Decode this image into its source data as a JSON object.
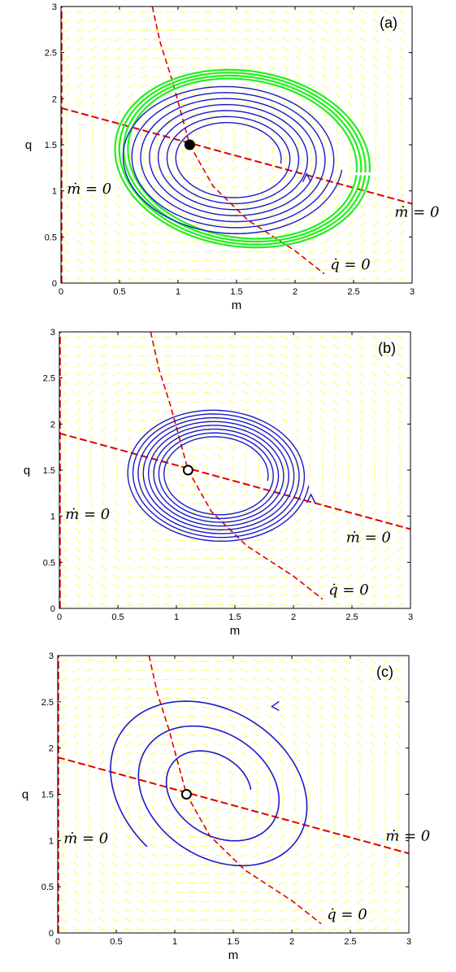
{
  "colors": {
    "field": "#ffff55",
    "nullcline": "#dd0000",
    "trajectory": "#1a1acc",
    "limit_cycle": "#22ee22",
    "axes": "#000000"
  },
  "chart_data": [
    {
      "type": "line",
      "panel_label": "(a)",
      "xlabel": "m",
      "ylabel": "q",
      "xlim": [
        0,
        3
      ],
      "ylim": [
        0,
        3
      ],
      "xticks": [
        "0",
        "0.5",
        "1",
        "1.5",
        "2",
        "2.5",
        "3"
      ],
      "yticks": [
        "0",
        "0.5",
        "1",
        "1.5",
        "2",
        "2.5",
        "3"
      ],
      "annotations": [
        {
          "text": "ṁ = 0",
          "x": 0.05,
          "y": 0.97
        },
        {
          "text": "ṁ = 0",
          "x": 2.85,
          "y": 0.72
        },
        {
          "text": "q̇ = 0",
          "x": 2.3,
          "y": 0.15
        }
      ],
      "fixed_point": {
        "x": 1.1,
        "y": 1.5,
        "filled": true
      },
      "nullclines": {
        "m_dot_vertical_x": 0.0,
        "m_dot_line": [
          [
            0,
            1.9
          ],
          [
            3,
            0.86
          ]
        ],
        "q_dot_curve": [
          [
            0.78,
            3.0
          ],
          [
            0.85,
            2.6
          ],
          [
            0.95,
            2.2
          ],
          [
            1.1,
            1.5
          ],
          [
            1.3,
            1.05
          ],
          [
            1.6,
            0.68
          ],
          [
            2.0,
            0.35
          ],
          [
            2.25,
            0.1
          ]
        ]
      },
      "trajectories": [
        {
          "kind": "limit_cycle",
          "center": [
            1.55,
            1.35
          ],
          "radii": [
            1.05,
            0.92
          ],
          "turns": 4,
          "spread": 0.07
        },
        {
          "kind": "spiral",
          "center": [
            1.45,
            1.35
          ],
          "radii": [
            0.95,
            0.82
          ],
          "turns": 7,
          "shrink": 0.55,
          "arrow_at": [
            2.1,
            1.15
          ]
        }
      ]
    },
    {
      "type": "line",
      "panel_label": "(b)",
      "xlabel": "m",
      "ylabel": "q",
      "xlim": [
        0,
        3
      ],
      "ylim": [
        0,
        3
      ],
      "xticks": [
        "0",
        "0.5",
        "1",
        "1.5",
        "2",
        "2.5",
        "3"
      ],
      "yticks": [
        "0",
        "0.5",
        "1",
        "1.5",
        "2",
        "2.5",
        "3"
      ],
      "annotations": [
        {
          "text": "ṁ = 0",
          "x": 0.05,
          "y": 0.97
        },
        {
          "text": "ṁ = 0",
          "x": 2.45,
          "y": 0.72
        },
        {
          "text": "q̇ = 0",
          "x": 2.3,
          "y": 0.15
        }
      ],
      "fixed_point": {
        "x": 1.1,
        "y": 1.5,
        "filled": false
      },
      "nullclines": {
        "m_dot_vertical_x": 0.0,
        "m_dot_line": [
          [
            0,
            1.9
          ],
          [
            3,
            0.86
          ]
        ],
        "q_dot_curve": [
          [
            0.78,
            3.0
          ],
          [
            0.85,
            2.6
          ],
          [
            0.95,
            2.2
          ],
          [
            1.1,
            1.5
          ],
          [
            1.3,
            1.05
          ],
          [
            1.6,
            0.68
          ],
          [
            2.0,
            0.35
          ],
          [
            2.25,
            0.1
          ]
        ]
      },
      "trajectories": [
        {
          "kind": "spiral",
          "center": [
            1.35,
            1.45
          ],
          "radii": [
            0.78,
            0.72
          ],
          "turns": 8,
          "shrink": 0.45,
          "arrow_at": [
            2.15,
            1.2
          ]
        }
      ]
    },
    {
      "type": "line",
      "panel_label": "(c)",
      "xlabel": "m",
      "ylabel": "q",
      "xlim": [
        0,
        3
      ],
      "ylim": [
        0,
        3
      ],
      "xticks": [
        "0",
        "0.5",
        "1",
        "1.5",
        "2",
        "2.5",
        "3"
      ],
      "yticks": [
        "0",
        "0.5",
        "1",
        "1.5",
        "2",
        "2.5",
        "3"
      ],
      "annotations": [
        {
          "text": "ṁ = 0",
          "x": 0.05,
          "y": 0.97
        },
        {
          "text": "ṁ = 0",
          "x": 2.8,
          "y": 1.0
        },
        {
          "text": "q̇ = 0",
          "x": 2.3,
          "y": 0.15
        }
      ],
      "fixed_point": {
        "x": 1.1,
        "y": 1.5,
        "filled": false
      },
      "nullclines": {
        "m_dot_vertical_x": 0.0,
        "m_dot_line": [
          [
            0,
            1.9
          ],
          [
            3,
            0.86
          ]
        ],
        "q_dot_curve": [
          [
            0.78,
            3.0
          ],
          [
            0.85,
            2.6
          ],
          [
            0.95,
            2.2
          ],
          [
            1.1,
            1.5
          ],
          [
            1.3,
            1.05
          ],
          [
            1.6,
            0.68
          ],
          [
            2.0,
            0.35
          ],
          [
            2.25,
            0.1
          ]
        ]
      },
      "trajectories": [
        {
          "kind": "unstable_spiral",
          "center": [
            1.35,
            1.55
          ],
          "start_radii": [
            0.3,
            0.35
          ],
          "turns": 2.6,
          "growth": 3.0,
          "arrow_at": [
            1.85,
            2.45
          ]
        }
      ]
    }
  ]
}
